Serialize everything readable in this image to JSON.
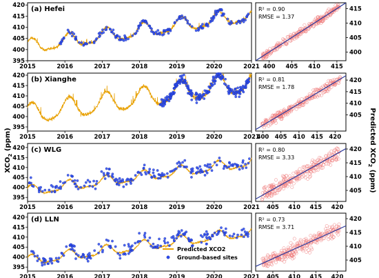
{
  "chart_data": {
    "type": "scatter",
    "ylabel_left": "XCO2 (ppm)",
    "ylabel_right": "Predicted XCO2 (ppm)",
    "legend": {
      "placement": "bottom-right of panel (d)",
      "entries": [
        {
          "name": "Predicted XCO2",
          "color": "#e8a000",
          "marker": "line"
        },
        {
          "name": "Ground-based sites",
          "color": "#2b4bf0",
          "marker": "circle"
        }
      ]
    },
    "colors": {
      "predicted": "#e8a000",
      "ground": "#2b4bf0",
      "scatter_edge": "#f08080",
      "fit_line": "#2b3a9c"
    },
    "timeseries_x": {
      "xlim": [
        2015,
        2021
      ],
      "ticks": [
        2015,
        2016,
        2017,
        2018,
        2019,
        2020,
        2021
      ]
    },
    "panels": [
      {
        "site": "Hefei",
        "title": "(a) Hefei",
        "ts_ylim": [
          395,
          421
        ],
        "ts_yticks": [
          395,
          400,
          405,
          410,
          415,
          420
        ],
        "ground_range": [
          2015.8,
          2020.95
        ],
        "sc_xlim": [
          397,
          417
        ],
        "sc_xticks": [
          400,
          405,
          410,
          415
        ],
        "sc_ylim": [
          397,
          417
        ],
        "sc_yticks": [
          400,
          405,
          410,
          415
        ],
        "r2": "R² = 0.90",
        "rmse": "RMSE = 1.37",
        "fit": {
          "slope": 1.0,
          "intercept": 0.0
        }
      },
      {
        "site": "Xianghe",
        "title": "(b) Xianghe",
        "ts_ylim": [
          393,
          421
        ],
        "ts_yticks": [
          395,
          400,
          405,
          410,
          415,
          420
        ],
        "ground_range": [
          2018.55,
          2020.95
        ],
        "sc_xlim": [
          398,
          423
        ],
        "sc_xticks": [
          400,
          405,
          410,
          415,
          420
        ],
        "sc_ylim": [
          398,
          423
        ],
        "sc_yticks": [
          405,
          410,
          415,
          420
        ],
        "r2": "R² = 0.81",
        "rmse": "RMSE = 1.78",
        "fit": {
          "slope": 0.93,
          "intercept": 28.5
        }
      },
      {
        "site": "WLG",
        "title": "(c) WLG",
        "ts_ylim": [
          393,
          422
        ],
        "ts_yticks": [
          395,
          400,
          405,
          410,
          415,
          420
        ],
        "ground_range": [
          2015.0,
          2020.95
        ],
        "sc_xlim": [
          401,
          422
        ],
        "sc_xticks": [
          405,
          410,
          415,
          420
        ],
        "sc_ylim": [
          401,
          422
        ],
        "sc_yticks": [
          405,
          410,
          415,
          420
        ],
        "r2": "R² = 0.80",
        "rmse": "RMSE = 3.33",
        "fit": {
          "slope": 0.87,
          "intercept": 53.0
        }
      },
      {
        "site": "LLN",
        "title": "(d) LLN",
        "ts_ylim": [
          393,
          422
        ],
        "ts_yticks": [
          395,
          400,
          405,
          410,
          415,
          420
        ],
        "ground_range": [
          2015.0,
          2020.95
        ],
        "sc_xlim": [
          401,
          422
        ],
        "sc_xticks": [
          405,
          410,
          415,
          420
        ],
        "sc_ylim": [
          401,
          422
        ],
        "sc_yticks": [
          405,
          410,
          415,
          420
        ],
        "r2": "R² = 0.73",
        "rmse": "RMSE = 3.71",
        "fit": {
          "slope": 0.7,
          "intercept": 122.0
        }
      }
    ]
  }
}
